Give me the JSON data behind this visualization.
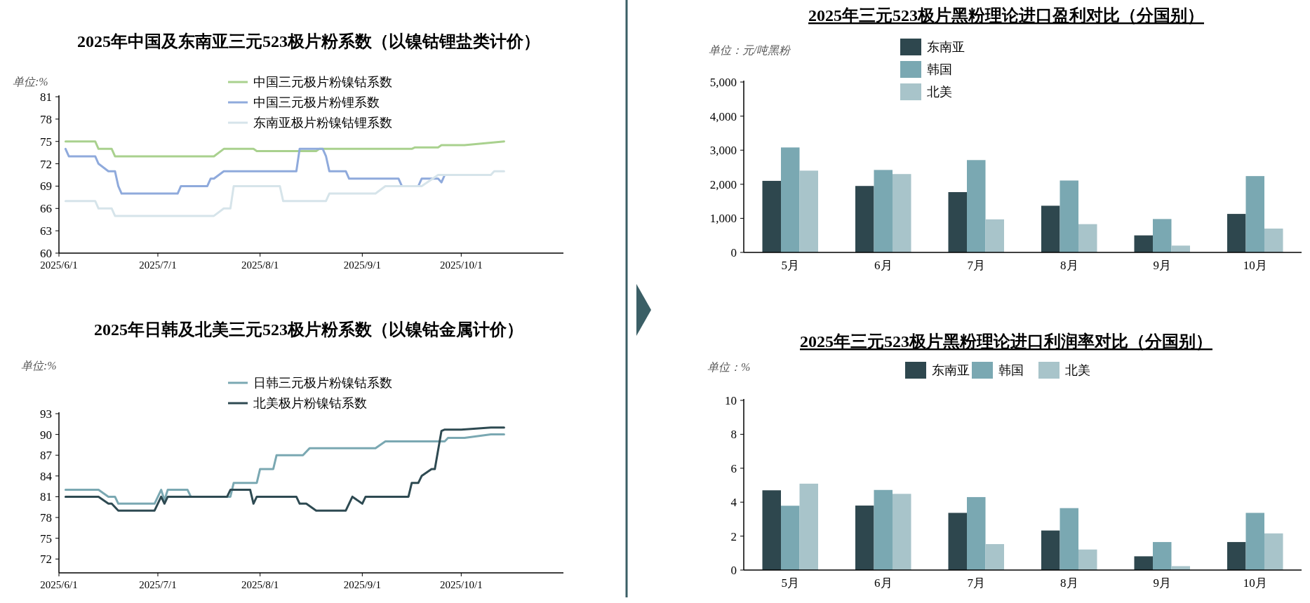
{
  "chart_data": [
    {
      "type": "line",
      "title": "2025年中国及东南亚三元523极片粉系数（以镍钴锂盐类计价）",
      "ylabel": "单位:%",
      "xlim": [
        "2025-06-01",
        "2025-11-01"
      ],
      "xticks": [
        {
          "value": "2025-06-01",
          "label": "2025/6/1"
        },
        {
          "value": "2025-07-01",
          "label": "2025/7/1"
        },
        {
          "value": "2025-08-01",
          "label": "2025/8/1"
        },
        {
          "value": "2025-09-01",
          "label": "2025/9/1"
        },
        {
          "value": "2025-10-01",
          "label": "2025/10/1"
        }
      ],
      "ylim": [
        60,
        81
      ],
      "yticks": [
        60,
        63,
        66,
        69,
        72,
        75,
        78,
        81
      ],
      "legend": "top",
      "grid": false,
      "marker": "none",
      "series": [
        {
          "name": "中国三元极片粉镍钴系数",
          "color": "#a9d18e",
          "x": [
            "2025-06-03",
            "2025-06-12",
            "2025-06-13",
            "2025-06-17",
            "2025-06-18",
            "2025-07-18",
            "2025-07-21",
            "2025-07-30",
            "2025-07-31",
            "2025-08-18",
            "2025-08-19",
            "2025-09-16",
            "2025-09-17",
            "2025-09-24",
            "2025-09-25",
            "2025-10-02",
            "2025-10-14"
          ],
          "values": [
            75,
            75,
            74,
            74,
            73,
            73,
            74,
            74,
            73.7,
            73.7,
            74,
            74,
            74.2,
            74.2,
            74.5,
            74.5,
            75
          ]
        },
        {
          "name": "中国三元极片粉锂系数",
          "color": "#8faadc",
          "x": [
            "2025-06-03",
            "2025-06-04",
            "2025-06-12",
            "2025-06-13",
            "2025-06-16",
            "2025-06-18",
            "2025-06-19",
            "2025-06-20",
            "2025-07-07",
            "2025-07-08",
            "2025-07-16",
            "2025-07-17",
            "2025-07-18",
            "2025-07-21",
            "2025-08-12",
            "2025-08-13",
            "2025-08-20",
            "2025-08-21",
            "2025-08-22",
            "2025-08-27",
            "2025-08-28",
            "2025-09-12",
            "2025-09-13",
            "2025-09-18",
            "2025-09-19",
            "2025-09-24",
            "2025-09-25",
            "2025-09-26"
          ],
          "values": [
            74,
            73,
            73,
            72,
            71,
            71,
            69,
            68,
            68,
            69,
            69,
            70,
            70,
            71,
            71,
            74,
            74,
            73,
            71,
            71,
            70,
            70,
            69,
            69,
            70,
            70,
            69.5,
            70.5
          ]
        },
        {
          "name": "东南亚极片粉镍钴锂系数",
          "color": "#d6e4ea",
          "x": [
            "2025-06-03",
            "2025-06-12",
            "2025-06-13",
            "2025-06-17",
            "2025-06-18",
            "2025-07-18",
            "2025-07-21",
            "2025-07-23",
            "2025-07-24",
            "2025-08-07",
            "2025-08-08",
            "2025-08-21",
            "2025-08-22",
            "2025-09-05",
            "2025-09-08",
            "2025-09-19",
            "2025-09-24",
            "2025-10-10",
            "2025-10-11",
            "2025-10-14"
          ],
          "values": [
            67,
            67,
            66,
            66,
            65,
            65,
            66,
            66,
            69,
            69,
            67,
            67,
            68,
            68,
            69,
            69,
            70.5,
            70.5,
            71,
            71
          ]
        }
      ]
    },
    {
      "type": "line",
      "title": "2025年日韩及北美三元523极片粉系数（以镍钴金属计价）",
      "ylabel": "单位:%",
      "xlim": [
        "2025-06-01",
        "2025-11-01"
      ],
      "xticks": [
        {
          "value": "2025-06-01",
          "label": "2025/6/1"
        },
        {
          "value": "2025-07-01",
          "label": "2025/7/1"
        },
        {
          "value": "2025-08-01",
          "label": "2025/8/1"
        },
        {
          "value": "2025-09-01",
          "label": "2025/9/1"
        },
        {
          "value": "2025-10-01",
          "label": "2025/10/1"
        }
      ],
      "ylim": [
        70,
        93
      ],
      "yticks": [
        72,
        75,
        78,
        81,
        84,
        87,
        90,
        93
      ],
      "legend": "top",
      "grid": false,
      "marker": "none",
      "series": [
        {
          "name": "日韩三元极片粉镍钴系数",
          "color": "#7aa8b2",
          "x": [
            "2025-06-03",
            "2025-06-13",
            "2025-06-16",
            "2025-06-18",
            "2025-06-19",
            "2025-06-30",
            "2025-07-02",
            "2025-07-03",
            "2025-07-04",
            "2025-07-10",
            "2025-07-11",
            "2025-07-23",
            "2025-07-24",
            "2025-07-31",
            "2025-08-01",
            "2025-08-05",
            "2025-08-06",
            "2025-08-14",
            "2025-08-16",
            "2025-09-05",
            "2025-09-08",
            "2025-09-26",
            "2025-09-27",
            "2025-10-02",
            "2025-10-10",
            "2025-10-14"
          ],
          "values": [
            82,
            82,
            81,
            81,
            80,
            80,
            82,
            80.5,
            82,
            82,
            81,
            81,
            83,
            83,
            85,
            85,
            87,
            87,
            88,
            88,
            89,
            89,
            89.5,
            89.5,
            90,
            90
          ]
        },
        {
          "name": "北美极片粉镍钴系数",
          "color": "#2e4a52",
          "x": [
            "2025-06-03",
            "2025-06-13",
            "2025-06-16",
            "2025-06-17",
            "2025-06-19",
            "2025-06-30",
            "2025-07-02",
            "2025-07-03",
            "2025-07-04",
            "2025-07-22",
            "2025-07-23",
            "2025-07-29",
            "2025-07-30",
            "2025-07-31",
            "2025-08-12",
            "2025-08-13",
            "2025-08-15",
            "2025-08-18",
            "2025-08-27",
            "2025-08-29",
            "2025-09-01",
            "2025-09-02",
            "2025-09-15",
            "2025-09-16",
            "2025-09-18",
            "2025-09-19",
            "2025-09-22",
            "2025-09-23",
            "2025-09-25",
            "2025-09-26",
            "2025-10-01",
            "2025-10-10",
            "2025-10-14"
          ],
          "values": [
            81,
            81,
            80,
            80,
            79,
            79,
            81,
            80,
            81,
            81,
            82,
            82,
            80,
            81,
            81,
            80,
            80,
            79,
            79,
            81,
            80,
            81,
            81,
            83,
            83,
            84,
            85,
            85,
            90.5,
            90.7,
            90.7,
            91,
            91
          ]
        }
      ]
    },
    {
      "type": "bar",
      "title": "2025年三元523极片黑粉理论进口盈利对比（分国别）",
      "ylabel": "单位：元/吨黑粉",
      "categories": [
        "5月",
        "6月",
        "7月",
        "8月",
        "9月",
        "10月"
      ],
      "ylim": [
        0,
        5000
      ],
      "yticks": [
        {
          "value": 0,
          "label": "0"
        },
        {
          "value": 1000,
          "label": "1,000"
        },
        {
          "value": 2000,
          "label": "2,000"
        },
        {
          "value": 3000,
          "label": "3,000"
        },
        {
          "value": 4000,
          "label": "4,000"
        },
        {
          "value": 5000,
          "label": "5,000"
        }
      ],
      "legend": "top",
      "grid": false,
      "series": [
        {
          "name": "东南亚",
          "color": "#2e474e",
          "values": [
            2100,
            1950,
            1770,
            1370,
            500,
            1130
          ]
        },
        {
          "name": "韩国",
          "color": "#7aa8b2",
          "values": [
            3080,
            2420,
            2710,
            2110,
            980,
            2240
          ]
        },
        {
          "name": "北美",
          "color": "#a8c4ca",
          "values": [
            2400,
            2300,
            970,
            830,
            200,
            700
          ]
        }
      ]
    },
    {
      "type": "bar",
      "title": "2025年三元523极片黑粉理论进口利润率对比（分国别）",
      "ylabel": "单位：%",
      "categories": [
        "5月",
        "6月",
        "7月",
        "8月",
        "9月",
        "10月"
      ],
      "ylim": [
        0,
        10
      ],
      "yticks": [
        0,
        2,
        4,
        6,
        8,
        10
      ],
      "legend": "top",
      "grid": false,
      "series": [
        {
          "name": "东南亚",
          "color": "#2e474e",
          "values": [
            4.7,
            3.8,
            3.37,
            2.33,
            0.81,
            1.65
          ]
        },
        {
          "name": "韩国",
          "color": "#7aa8b2",
          "values": [
            3.79,
            4.72,
            4.3,
            3.65,
            1.65,
            3.37
          ]
        },
        {
          "name": "北美",
          "color": "#a8c4ca",
          "values": [
            5.09,
            4.49,
            1.53,
            1.21,
            0.23,
            2.16
          ]
        }
      ]
    }
  ]
}
